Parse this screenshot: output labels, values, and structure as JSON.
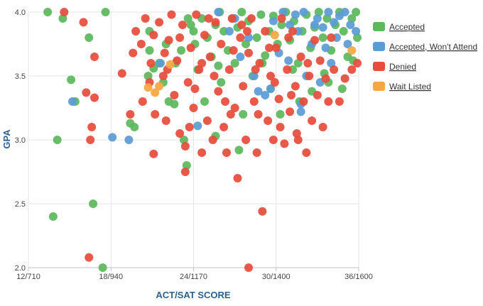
{
  "chart_data": {
    "type": "scatter",
    "title": "",
    "xlabel": "ACT/SAT SCORE",
    "ylabel": "GPA",
    "xlim": [
      12,
      36
    ],
    "ylim": [
      2.0,
      4.0
    ],
    "x_ticks": [
      {
        "value": 12,
        "label": "12/710"
      },
      {
        "value": 18,
        "label": "18/940"
      },
      {
        "value": 24,
        "label": "24/1170"
      },
      {
        "value": 30,
        "label": "30/1400"
      },
      {
        "value": 36,
        "label": "36/1600"
      }
    ],
    "y_ticks": [
      {
        "value": 2.0,
        "label": "2.0"
      },
      {
        "value": 2.5,
        "label": "2.5"
      },
      {
        "value": 3.0,
        "label": "3.0"
      },
      {
        "value": 3.5,
        "label": "3.5"
      },
      {
        "value": 4.0,
        "label": "4.0"
      }
    ],
    "grid": true,
    "legend_position": "top-right",
    "series": [
      {
        "name": "Accepted",
        "color": "#5cb85c",
        "points": [
          [
            13.4,
            4.0
          ],
          [
            14.5,
            3.95
          ],
          [
            17.6,
            4.0
          ],
          [
            16.4,
            3.8
          ],
          [
            15.1,
            3.47
          ],
          [
            15.4,
            3.3
          ],
          [
            14.1,
            3.0
          ],
          [
            13.8,
            2.4
          ],
          [
            16.7,
            2.5
          ],
          [
            17.4,
            2.0
          ],
          [
            19.4,
            3.13
          ],
          [
            19.7,
            3.1
          ],
          [
            20.7,
            3.5
          ],
          [
            21.1,
            3.56
          ],
          [
            20.8,
            3.7
          ],
          [
            20.8,
            3.85
          ],
          [
            21.5,
            3.6
          ],
          [
            21.8,
            3.45
          ],
          [
            22.2,
            3.3
          ],
          [
            22.6,
            3.28
          ],
          [
            23.3,
            3.0
          ],
          [
            23.5,
            2.8
          ],
          [
            22.7,
            3.6
          ],
          [
            23.1,
            3.7
          ],
          [
            23.8,
            3.9
          ],
          [
            24.0,
            3.85
          ],
          [
            24.3,
            3.55
          ],
          [
            24.1,
            3.75
          ],
          [
            24.6,
            3.95
          ],
          [
            25.0,
            3.8
          ],
          [
            25.3,
            3.65
          ],
          [
            25.6,
            3.9
          ],
          [
            25.9,
            4.0
          ],
          [
            26.2,
            3.85
          ],
          [
            26.5,
            3.7
          ],
          [
            26.8,
            3.95
          ],
          [
            27.0,
            3.6
          ],
          [
            27.2,
            3.88
          ],
          [
            27.5,
            4.0
          ],
          [
            27.8,
            3.75
          ],
          [
            28.0,
            3.93
          ],
          [
            28.3,
            3.5
          ],
          [
            28.6,
            3.8
          ],
          [
            28.9,
            3.98
          ],
          [
            29.2,
            3.66
          ],
          [
            29.5,
            3.85
          ],
          [
            29.8,
            3.97
          ],
          [
            30.1,
            3.75
          ],
          [
            30.4,
            3.9
          ],
          [
            30.7,
            4.0
          ],
          [
            31.0,
            3.78
          ],
          [
            31.3,
            3.93
          ],
          [
            31.6,
            3.6
          ],
          [
            31.9,
            3.85
          ],
          [
            32.2,
            3.98
          ],
          [
            32.5,
            3.72
          ],
          [
            32.8,
            3.88
          ],
          [
            33.1,
            4.0
          ],
          [
            33.4,
            3.8
          ],
          [
            33.7,
            3.95
          ],
          [
            34.0,
            3.7
          ],
          [
            34.3,
            3.9
          ],
          [
            34.6,
            4.0
          ],
          [
            34.9,
            3.85
          ],
          [
            35.2,
            3.65
          ],
          [
            35.5,
            3.95
          ],
          [
            35.8,
            4.0
          ],
          [
            35.6,
            3.62
          ],
          [
            35.9,
            3.8
          ],
          [
            25.6,
            3.03
          ],
          [
            27.3,
            2.92
          ],
          [
            27.6,
            3.2
          ],
          [
            29.6,
            3.4
          ],
          [
            30.3,
            3.2
          ],
          [
            31.7,
            3.3
          ],
          [
            32.6,
            3.38
          ],
          [
            33.8,
            3.45
          ],
          [
            34.8,
            3.4
          ],
          [
            26.0,
            3.45
          ],
          [
            24.8,
            3.3
          ],
          [
            31.2,
            3.55
          ],
          [
            29.0,
            3.6
          ],
          [
            33.5,
            3.52
          ],
          [
            22.0,
            3.75
          ],
          [
            23.6,
            3.95
          ],
          [
            25.8,
            3.58
          ]
        ]
      },
      {
        "name": "Accepted, Won't Attend",
        "color": "#5b9bd5",
        "points": [
          [
            15.2,
            3.3
          ],
          [
            18.1,
            3.02
          ],
          [
            19.3,
            3.0
          ],
          [
            21.6,
            3.6
          ],
          [
            24.3,
            3.11
          ],
          [
            27.0,
            3.95
          ],
          [
            28.0,
            3.8
          ],
          [
            28.7,
            3.38
          ],
          [
            29.2,
            3.35
          ],
          [
            29.6,
            3.4
          ],
          [
            30.2,
            3.68
          ],
          [
            31.0,
            3.9
          ],
          [
            31.6,
            3.85
          ],
          [
            31.8,
            3.28
          ],
          [
            31.8,
            3.22
          ],
          [
            32.2,
            3.5
          ],
          [
            32.6,
            3.75
          ],
          [
            33.0,
            3.95
          ],
          [
            33.4,
            3.88
          ],
          [
            33.8,
            4.0
          ],
          [
            34.2,
            3.92
          ],
          [
            34.6,
            3.97
          ],
          [
            35.0,
            4.0
          ],
          [
            35.4,
            3.9
          ],
          [
            35.8,
            3.85
          ],
          [
            30.5,
            4.0
          ],
          [
            31.4,
            3.98
          ],
          [
            32.0,
            4.0
          ],
          [
            32.8,
            3.9
          ],
          [
            33.6,
            3.72
          ],
          [
            34.4,
            3.8
          ],
          [
            29.8,
            3.93
          ],
          [
            30.9,
            3.62
          ],
          [
            28.4,
            3.5
          ],
          [
            27.4,
            3.65
          ],
          [
            26.6,
            3.85
          ],
          [
            25.8,
            4.0
          ],
          [
            33.2,
            3.45
          ],
          [
            34.0,
            3.6
          ],
          [
            35.2,
            3.75
          ]
        ]
      },
      {
        "name": "Denied",
        "color": "#e74c3c",
        "points": [
          [
            14.6,
            4.0
          ],
          [
            16.0,
            3.92
          ],
          [
            16.8,
            3.65
          ],
          [
            16.2,
            3.37
          ],
          [
            16.6,
            3.1
          ],
          [
            16.5,
            3.0
          ],
          [
            16.8,
            3.33
          ],
          [
            16.4,
            2.08
          ],
          [
            18.8,
            3.52
          ],
          [
            19.4,
            3.2
          ],
          [
            19.6,
            3.68
          ],
          [
            19.8,
            3.85
          ],
          [
            20.2,
            3.75
          ],
          [
            20.3,
            3.3
          ],
          [
            20.5,
            3.95
          ],
          [
            20.8,
            3.45
          ],
          [
            21.1,
            3.82
          ],
          [
            21.2,
            3.2
          ],
          [
            21.1,
            2.89
          ],
          [
            21.5,
            3.92
          ],
          [
            21.8,
            3.5
          ],
          [
            22.0,
            3.15
          ],
          [
            22.2,
            3.78
          ],
          [
            22.4,
            3.98
          ],
          [
            22.6,
            3.35
          ],
          [
            22.8,
            3.62
          ],
          [
            23.0,
            3.05
          ],
          [
            23.2,
            3.9
          ],
          [
            23.4,
            2.95
          ],
          [
            23.4,
            2.75
          ],
          [
            23.6,
            3.45
          ],
          [
            23.8,
            3.72
          ],
          [
            24.0,
            3.25
          ],
          [
            24.2,
            3.98
          ],
          [
            24.4,
            3.55
          ],
          [
            24.6,
            2.9
          ],
          [
            24.8,
            3.82
          ],
          [
            25.0,
            3.15
          ],
          [
            25.2,
            3.65
          ],
          [
            25.4,
            3.0
          ],
          [
            25.6,
            3.92
          ],
          [
            25.8,
            3.38
          ],
          [
            26.0,
            3.75
          ],
          [
            26.2,
            3.1
          ],
          [
            26.4,
            2.9
          ],
          [
            26.6,
            3.55
          ],
          [
            26.8,
            3.95
          ],
          [
            27.0,
            3.25
          ],
          [
            27.2,
            2.7
          ],
          [
            27.4,
            3.8
          ],
          [
            27.6,
            3.42
          ],
          [
            27.8,
            3.0
          ],
          [
            28.0,
            3.68
          ],
          [
            28.2,
            3.95
          ],
          [
            28.4,
            3.3
          ],
          [
            28.6,
            2.9
          ],
          [
            28.8,
            3.6
          ],
          [
            29.0,
            2.44
          ],
          [
            29.2,
            3.85
          ],
          [
            29.4,
            3.15
          ],
          [
            29.6,
            3.5
          ],
          [
            29.8,
            3.0
          ],
          [
            30.0,
            3.72
          ],
          [
            30.2,
            3.32
          ],
          [
            30.4,
            3.95
          ],
          [
            30.6,
            2.97
          ],
          [
            30.8,
            3.55
          ],
          [
            31.0,
            3.22
          ],
          [
            31.2,
            3.85
          ],
          [
            31.4,
            3.42
          ],
          [
            31.6,
            3.0
          ],
          [
            31.8,
            3.65
          ],
          [
            32.0,
            3.3
          ],
          [
            32.2,
            2.9
          ],
          [
            32.4,
            3.5
          ],
          [
            32.6,
            3.15
          ],
          [
            32.8,
            3.78
          ],
          [
            33.0,
            3.35
          ],
          [
            33.2,
            3.62
          ],
          [
            33.4,
            3.1
          ],
          [
            33.6,
            3.48
          ],
          [
            33.8,
            3.3
          ],
          [
            34.0,
            3.8
          ],
          [
            34.2,
            3.55
          ],
          [
            34.6,
            3.3
          ],
          [
            35.0,
            3.48
          ],
          [
            35.5,
            3.55
          ],
          [
            35.9,
            3.6
          ],
          [
            28.0,
            2.0
          ],
          [
            24.6,
            3.6
          ],
          [
            25.5,
            3.5
          ],
          [
            26.9,
            3.7
          ],
          [
            27.9,
            3.85
          ],
          [
            29.5,
            3.72
          ],
          [
            30.9,
            3.8
          ],
          [
            23.0,
            3.8
          ],
          [
            22.1,
            3.55
          ],
          [
            24.1,
            3.4
          ],
          [
            26.3,
            3.3
          ],
          [
            28.7,
            3.2
          ],
          [
            30.3,
            3.1
          ],
          [
            31.5,
            3.05
          ],
          [
            21.9,
            3.68
          ],
          [
            25.1,
            3.95
          ],
          [
            27.5,
            3.9
          ],
          [
            29.9,
            3.45
          ],
          [
            32.3,
            3.6
          ],
          [
            20.9,
            3.6
          ],
          [
            23.7,
            3.1
          ],
          [
            26.7,
            3.2
          ],
          [
            28.5,
            3.55
          ],
          [
            31.1,
            3.35
          ]
        ]
      },
      {
        "name": "Wait Listed",
        "color": "#f5a742",
        "points": [
          [
            21.5,
            3.42
          ],
          [
            20.7,
            3.41
          ],
          [
            21.2,
            3.37
          ],
          [
            22.3,
            3.59
          ],
          [
            35.5,
            3.7
          ],
          [
            29.9,
            3.82
          ]
        ]
      }
    ]
  }
}
